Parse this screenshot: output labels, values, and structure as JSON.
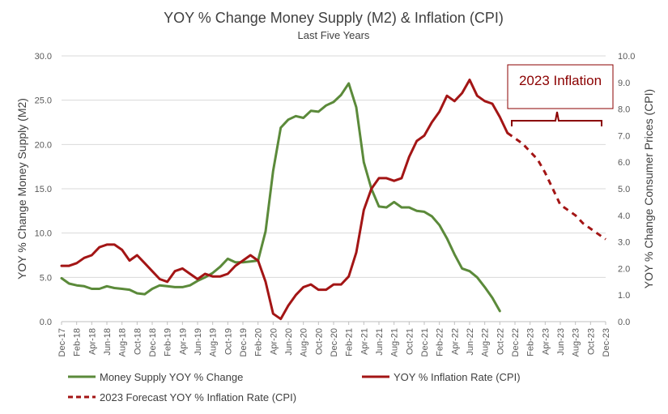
{
  "chart_data": {
    "type": "line",
    "title": "YOY % Change Money Supply (M2) & Inflation (CPI)",
    "subtitle": "Last Five Years",
    "ylabel": "YOY % Change Money Supply (M2)",
    "y2label": "YOY % Change Consumer Prices (CPI)",
    "ylim": [
      0,
      30
    ],
    "y2lim": [
      0,
      10
    ],
    "yticks": [
      "0.0",
      "5.0",
      "10.0",
      "15.0",
      "20.0",
      "25.0",
      "30.0"
    ],
    "y2ticks": [
      "0.0",
      "1.0",
      "2.0",
      "3.0",
      "4.0",
      "5.0",
      "6.0",
      "7.0",
      "8.0",
      "9.0",
      "10.0"
    ],
    "grid": true,
    "legend_position": "bottom",
    "months": [
      "Dec-17",
      "Jan-18",
      "Feb-18",
      "Mar-18",
      "Apr-18",
      "May-18",
      "Jun-18",
      "Jul-18",
      "Aug-18",
      "Sep-18",
      "Oct-18",
      "Nov-18",
      "Dec-18",
      "Jan-19",
      "Feb-19",
      "Mar-19",
      "Apr-19",
      "May-19",
      "Jun-19",
      "Jul-19",
      "Aug-19",
      "Sep-19",
      "Oct-19",
      "Nov-19",
      "Dec-19",
      "Jan-20",
      "Feb-20",
      "Mar-20",
      "Apr-20",
      "May-20",
      "Jun-20",
      "Jul-20",
      "Aug-20",
      "Sep-20",
      "Oct-20",
      "Nov-20",
      "Dec-20",
      "Jan-21",
      "Feb-21",
      "Mar-21",
      "Apr-21",
      "May-21",
      "Jun-21",
      "Jul-21",
      "Aug-21",
      "Sep-21",
      "Oct-21",
      "Nov-21",
      "Dec-21",
      "Jan-22",
      "Feb-22",
      "Mar-22",
      "Apr-22",
      "May-22",
      "Jun-22",
      "Jul-22",
      "Aug-22",
      "Sep-22",
      "Oct-22",
      "Nov-22",
      "Dec-22",
      "Jan-23",
      "Feb-23",
      "Mar-23",
      "Apr-23",
      "May-23",
      "Jun-23",
      "Jul-23",
      "Aug-23",
      "Sep-23",
      "Oct-23",
      "Nov-23",
      "Dec-23"
    ],
    "categories": [
      "Dec-17",
      "Feb-18",
      "Apr-18",
      "Jun-18",
      "Aug-18",
      "Oct-18",
      "Dec-18",
      "Feb-19",
      "Apr-19",
      "Jun-19",
      "Aug-19",
      "Oct-19",
      "Dec-19",
      "Feb-20",
      "Apr-20",
      "Jun-20",
      "Aug-20",
      "Oct-20",
      "Dec-20",
      "Feb-21",
      "Apr-21",
      "Jun-21",
      "Aug-21",
      "Oct-21",
      "Dec-21",
      "Feb-22",
      "Apr-22",
      "Jun-22",
      "Aug-22",
      "Oct-22",
      "Dec-22",
      "Feb-23",
      "Apr-23",
      "Jun-23",
      "Aug-23",
      "Oct-23",
      "Dec-23"
    ],
    "series": [
      {
        "name": "Money Supply YOY % Change",
        "axis": "left",
        "color": "#5b8a3a",
        "style": "solid",
        "x": [
          "Dec-17",
          "Jan-18",
          "Feb-18",
          "Mar-18",
          "Apr-18",
          "May-18",
          "Jun-18",
          "Jul-18",
          "Aug-18",
          "Sep-18",
          "Oct-18",
          "Nov-18",
          "Dec-18",
          "Jan-19",
          "Feb-19",
          "Mar-19",
          "Apr-19",
          "May-19",
          "Jun-19",
          "Jul-19",
          "Aug-19",
          "Sep-19",
          "Oct-19",
          "Nov-19",
          "Dec-19",
          "Jan-20",
          "Feb-20",
          "Mar-20",
          "Apr-20",
          "May-20",
          "Jun-20",
          "Jul-20",
          "Aug-20",
          "Sep-20",
          "Oct-20",
          "Nov-20",
          "Dec-20",
          "Jan-21",
          "Feb-21",
          "Mar-21",
          "Apr-21",
          "May-21",
          "Jun-21",
          "Jul-21",
          "Aug-21",
          "Sep-21",
          "Oct-21",
          "Nov-21",
          "Dec-21",
          "Jan-22",
          "Feb-22",
          "Mar-22",
          "Apr-22",
          "May-22",
          "Jun-22",
          "Jul-22",
          "Aug-22",
          "Sep-22",
          "Oct-22"
        ],
        "values": [
          4.9,
          4.3,
          4.1,
          4.0,
          3.7,
          3.7,
          4.0,
          3.8,
          3.7,
          3.6,
          3.2,
          3.1,
          3.7,
          4.1,
          4.0,
          3.9,
          3.9,
          4.1,
          4.6,
          5.0,
          5.5,
          6.2,
          7.1,
          6.7,
          6.7,
          6.8,
          6.9,
          10.2,
          17.0,
          21.9,
          22.8,
          23.2,
          23.0,
          23.8,
          23.7,
          24.4,
          24.8,
          25.6,
          26.9,
          24.2,
          18.0,
          15.0,
          13.0,
          12.9,
          13.5,
          12.9,
          12.9,
          12.5,
          12.4,
          11.9,
          10.9,
          9.4,
          7.6,
          6.0,
          5.7,
          5.0,
          3.9,
          2.7,
          1.2
        ]
      },
      {
        "name": "YOY % Inflation Rate (CPI)",
        "axis": "right",
        "color": "#a31515",
        "style": "solid",
        "x": [
          "Dec-17",
          "Jan-18",
          "Feb-18",
          "Mar-18",
          "Apr-18",
          "May-18",
          "Jun-18",
          "Jul-18",
          "Aug-18",
          "Sep-18",
          "Oct-18",
          "Nov-18",
          "Dec-18",
          "Jan-19",
          "Feb-19",
          "Mar-19",
          "Apr-19",
          "May-19",
          "Jun-19",
          "Jul-19",
          "Aug-19",
          "Sep-19",
          "Oct-19",
          "Nov-19",
          "Dec-19",
          "Jan-20",
          "Feb-20",
          "Mar-20",
          "Apr-20",
          "May-20",
          "Jun-20",
          "Jul-20",
          "Aug-20",
          "Sep-20",
          "Oct-20",
          "Nov-20",
          "Dec-20",
          "Jan-21",
          "Feb-21",
          "Mar-21",
          "Apr-21",
          "May-21",
          "Jun-21",
          "Jul-21",
          "Aug-21",
          "Sep-21",
          "Oct-21",
          "Nov-21",
          "Dec-21",
          "Jan-22",
          "Feb-22",
          "Mar-22",
          "Apr-22",
          "May-22",
          "Jun-22",
          "Jul-22",
          "Aug-22",
          "Sep-22",
          "Oct-22",
          "Nov-22"
        ],
        "values": [
          2.1,
          2.1,
          2.2,
          2.4,
          2.5,
          2.8,
          2.9,
          2.9,
          2.7,
          2.3,
          2.5,
          2.2,
          1.9,
          1.6,
          1.5,
          1.9,
          2.0,
          1.8,
          1.6,
          1.8,
          1.7,
          1.7,
          1.8,
          2.1,
          2.3,
          2.5,
          2.3,
          1.5,
          0.3,
          0.1,
          0.6,
          1.0,
          1.3,
          1.4,
          1.2,
          1.2,
          1.4,
          1.4,
          1.7,
          2.6,
          4.2,
          5.0,
          5.4,
          5.4,
          5.3,
          5.4,
          6.2,
          6.8,
          7.0,
          7.5,
          7.9,
          8.5,
          8.3,
          8.6,
          9.1,
          8.5,
          8.3,
          8.2,
          7.7,
          7.1
        ]
      },
      {
        "name": "2023 Forecast YOY % Inflation Rate (CPI)",
        "axis": "right",
        "color": "#a31515",
        "style": "dashed",
        "x": [
          "Nov-22",
          "Dec-22",
          "Jan-23",
          "Feb-23",
          "Mar-23",
          "Apr-23",
          "May-23",
          "Jun-23",
          "Jul-23",
          "Aug-23",
          "Sep-23",
          "Oct-23",
          "Nov-23",
          "Dec-23"
        ],
        "values": [
          7.1,
          6.9,
          6.7,
          6.4,
          6.1,
          5.6,
          5.0,
          4.4,
          4.2,
          4.0,
          3.7,
          3.5,
          3.3,
          3.1
        ]
      }
    ],
    "annotations": [
      {
        "text": "2023 Inflation",
        "from": "Dec-22",
        "to": "Dec-23",
        "type": "brace"
      }
    ]
  }
}
